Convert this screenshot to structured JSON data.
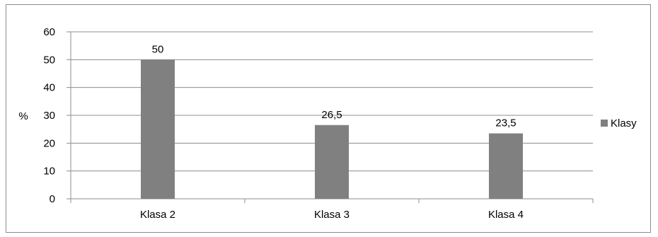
{
  "chart_data": {
    "type": "bar",
    "title": "",
    "xlabel": "",
    "ylabel": "%",
    "categories": [
      "Klasa 2",
      "Klasa 3",
      "Klasa 4"
    ],
    "series": [
      {
        "name": "Klasy",
        "values": [
          50,
          26.5,
          23.5
        ],
        "color": "#808080"
      }
    ],
    "data_labels": [
      "50",
      "26,5",
      "23,5"
    ],
    "y_ticks": [
      "0",
      "10",
      "20",
      "30",
      "40",
      "50",
      "60"
    ],
    "ylim": [
      0,
      60
    ],
    "grid": true,
    "legend_position": "right"
  }
}
